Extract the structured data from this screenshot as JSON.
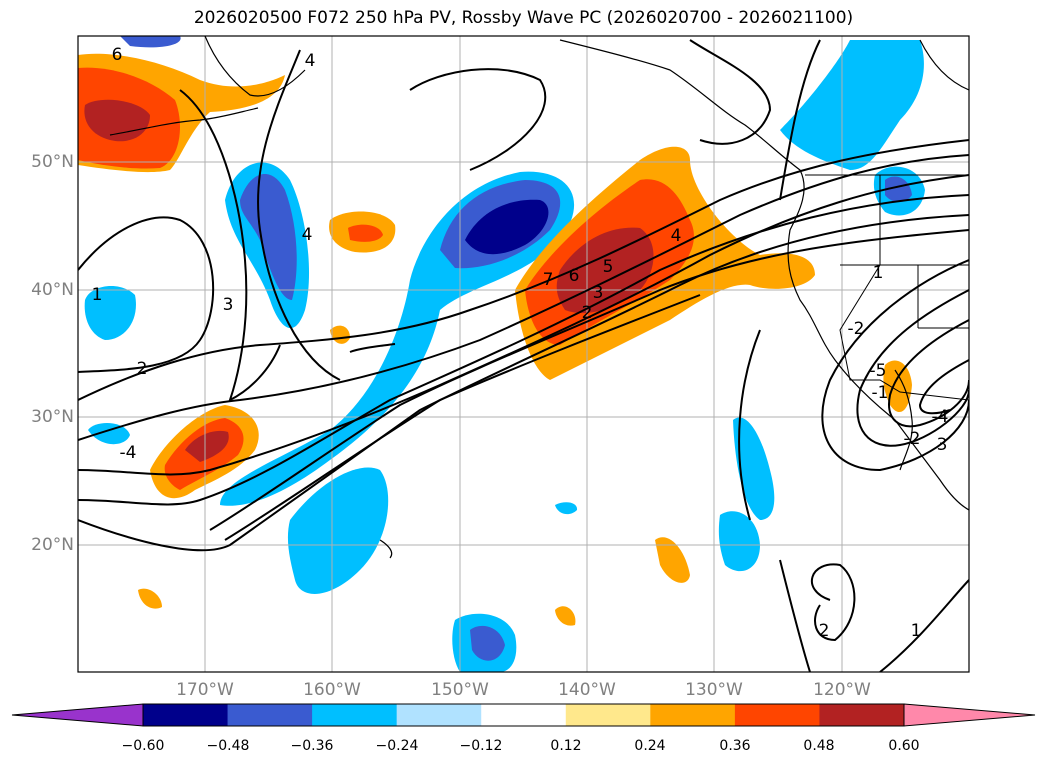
{
  "title": "2026020500 F072 250 hPa PV, Rossby Wave PC (2026020700 - 2026021100)",
  "map": {
    "lat_labels": [
      "50°N",
      "40°N",
      "30°N",
      "20°N"
    ],
    "lon_labels": [
      "170°W",
      "160°W",
      "150°W",
      "140°W",
      "130°W",
      "120°W"
    ],
    "contour_labels": [
      "6",
      "4",
      "3",
      "2",
      "-4",
      "1",
      "4",
      "7",
      "6",
      "5",
      "3",
      "2",
      "4",
      "1",
      "-2",
      "-5",
      "3",
      "-4",
      "-2",
      "-1",
      "2",
      "1"
    ]
  },
  "colorbar": {
    "colors": [
      "#9933cc",
      "#00008b",
      "#3a5bd0",
      "#00bfff",
      "#b0e2ff",
      "#ffffff",
      "#ffe88c",
      "#ffa500",
      "#ff4500",
      "#b22222",
      "#ff88aa"
    ],
    "ticks": [
      "−0.60",
      "−0.48",
      "−0.36",
      "−0.24",
      "−0.12",
      "0.12",
      "0.24",
      "0.36",
      "0.48",
      "0.60"
    ]
  },
  "legend_colors": {
    "neg_strong": "#00008b",
    "neg_mid": "#3a5bd0",
    "neg_weak": "#00bfff",
    "pos_weak": "#ffa500",
    "pos_mid": "#ff4500",
    "pos_strong": "#b22222"
  }
}
